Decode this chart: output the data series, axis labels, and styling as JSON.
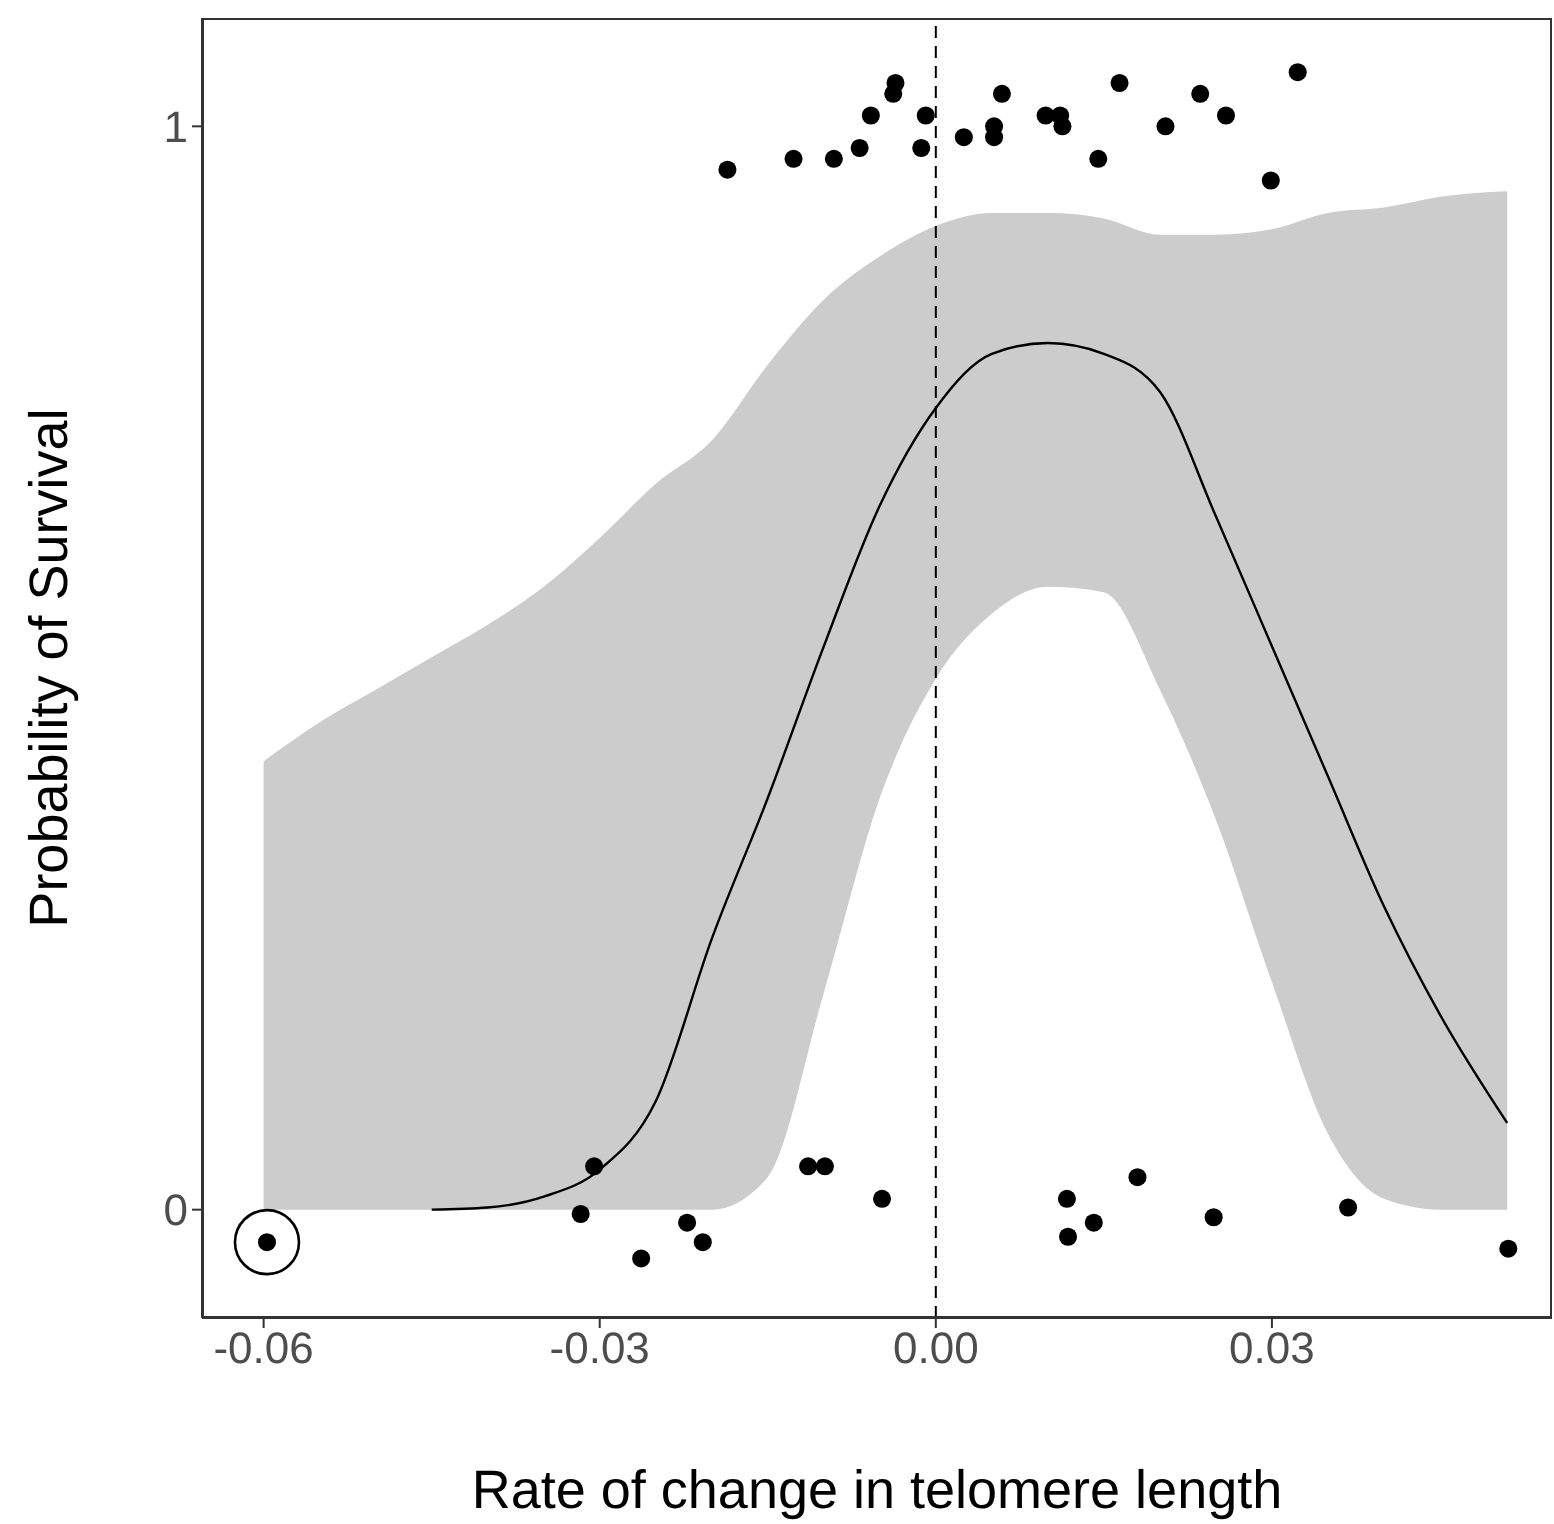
{
  "chart_data": {
    "type": "scatter",
    "xlabel": "Rate of change in telomere length",
    "ylabel": "Probability of Survival",
    "xlim": [
      -0.0655,
      0.055
    ],
    "ylim": [
      -0.1,
      1.1
    ],
    "xticks": [
      -0.06,
      -0.03,
      {
        "value": 0,
        "label": "0.00"
      },
      0.03
    ],
    "yticks": [
      0,
      1
    ],
    "ref_lines": [
      {
        "axis": "x",
        "value": 0,
        "line_style": "dashed",
        "color": "#000000"
      }
    ],
    "series": [
      {
        "color": "#000000",
        "marker": "circle",
        "x": [
          -0.0186,
          -0.0127,
          -0.0091,
          -0.0068,
          -0.0058,
          -0.0038,
          -0.0036,
          -0.0009,
          -0.0013,
          0.0025,
          0.0052,
          0.0052,
          0.0059,
          0.0098,
          0.0111,
          0.0113,
          0.0145,
          0.0164,
          0.0205,
          0.0236,
          0.0259,
          0.0299,
          0.0323,
          -0.0597,
          -0.0305,
          -0.0317,
          -0.0222,
          -0.0208,
          -0.0263,
          -0.0114,
          -0.0099,
          -0.0048,
          0.0117,
          0.0118,
          0.0141,
          0.018,
          0.0248,
          0.0368,
          0.0511
        ],
        "values": [
          0.96,
          0.97,
          0.97,
          0.98,
          1.01,
          1.03,
          1.04,
          1.01,
          0.98,
          0.99,
          1.0,
          0.99,
          1.03,
          1.01,
          1.01,
          1.0,
          0.97,
          1.04,
          1.0,
          1.03,
          1.01,
          0.95,
          1.05,
          -0.03,
          0.04,
          -0.004,
          -0.012,
          -0.03,
          -0.045,
          0.04,
          0.04,
          0.01,
          0.01,
          -0.025,
          -0.012,
          0.03,
          -0.007,
          0.002,
          -0.036
        ]
      },
      {
        "type": "line",
        "color": "#000000",
        "line_style": "solid",
        "x": [
          -0.06,
          -0.055,
          -0.05,
          -0.045,
          -0.04,
          -0.035,
          -0.03,
          -0.025,
          -0.02,
          -0.015,
          -0.01,
          -0.005,
          0,
          0.005,
          0.01,
          0.015,
          0.02,
          0.025,
          0.03,
          0.035,
          0.04,
          0.045,
          0.051
        ],
        "values": [
          null,
          null,
          null,
          0,
          0.002,
          0.012,
          0.037,
          0.1,
          0.25,
          0.38,
          0.52,
          0.65,
          0.74,
          0.79,
          0.8,
          0.79,
          0.755,
          0.64,
          0.52,
          0.4,
          0.28,
          0.18,
          0.08
        ],
        "lower": [
          0,
          0,
          0,
          0,
          0,
          0,
          0,
          0,
          0,
          0.03,
          0.2,
          0.38,
          0.49,
          0.55,
          0.575,
          0.57,
          0.48,
          0.36,
          0.21,
          0.07,
          0.01,
          0,
          0
        ],
        "upper": [
          0.414,
          0.45,
          0.48,
          0.51,
          0.54,
          0.575,
          0.62,
          0.67,
          0.71,
          0.78,
          0.84,
          0.88,
          0.908,
          0.92,
          0.92,
          0.915,
          0.9,
          0.9,
          0.905,
          0.92,
          0.925,
          0.935,
          0.94
        ]
      }
    ]
  }
}
